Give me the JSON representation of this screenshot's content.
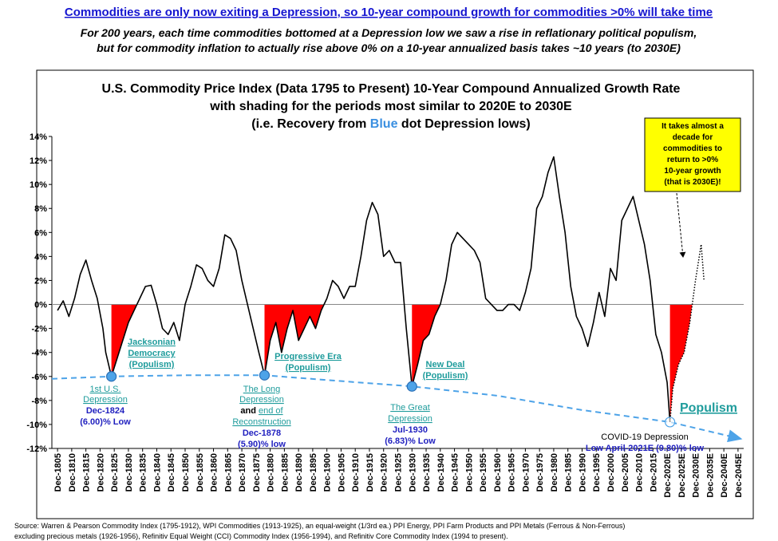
{
  "header": {
    "headline": "Commodities are only now exiting a Depression, so 10-year compound growth for commodities >0% will take time",
    "sub": [
      "For 200 years, each time commodities bottomed at a Depression low we saw a rise in reflationary political populism,",
      "but for commodity inflation to actually rise above 0% on a 10-year annualized basis takes ~10 years (to 2030E)"
    ]
  },
  "chart_data": {
    "type": "line",
    "title": [
      "U.S. Commodity Price Index (Data 1795 to Present) 10-Year Compound Annualized Growth Rate",
      "with shading for the periods most similar to 2020E to 2030E"
    ],
    "title_line3": [
      "(i.e. Recovery from",
      "Blue",
      "dot Depression lows)"
    ],
    "xlim": [
      1803,
      2047
    ],
    "xticks": [
      {
        "value": 1805,
        "label": "Dec-1805"
      },
      {
        "value": 1810,
        "label": "Dec-1810"
      },
      {
        "value": 1815,
        "label": "Dec-1815"
      },
      {
        "value": 1820,
        "label": "Dec-1820"
      },
      {
        "value": 1825,
        "label": "Dec-1825"
      },
      {
        "value": 1830,
        "label": "Dec-1830"
      },
      {
        "value": 1835,
        "label": "Dec-1835"
      },
      {
        "value": 1840,
        "label": "Dec-1840"
      },
      {
        "value": 1845,
        "label": "Dec-1845"
      },
      {
        "value": 1850,
        "label": "Dec-1850"
      },
      {
        "value": 1855,
        "label": "Dec-1855"
      },
      {
        "value": 1860,
        "label": "Dec-1860"
      },
      {
        "value": 1865,
        "label": "Dec-1865"
      },
      {
        "value": 1870,
        "label": "Dec-1870"
      },
      {
        "value": 1875,
        "label": "Dec-1875"
      },
      {
        "value": 1880,
        "label": "Dec-1880"
      },
      {
        "value": 1885,
        "label": "Dec-1885"
      },
      {
        "value": 1890,
        "label": "Dec-1890"
      },
      {
        "value": 1895,
        "label": "Dec-1895"
      },
      {
        "value": 1900,
        "label": "Dec-1900"
      },
      {
        "value": 1905,
        "label": "Dec-1905"
      },
      {
        "value": 1910,
        "label": "Dec-1910"
      },
      {
        "value": 1915,
        "label": "Dec-1915"
      },
      {
        "value": 1920,
        "label": "Dec-1920"
      },
      {
        "value": 1925,
        "label": "Dec-1925"
      },
      {
        "value": 1930,
        "label": "Dec-1930"
      },
      {
        "value": 1935,
        "label": "Dec-1935"
      },
      {
        "value": 1940,
        "label": "Dec-1940"
      },
      {
        "value": 1945,
        "label": "Dec-1945"
      },
      {
        "value": 1950,
        "label": "Dec-1950"
      },
      {
        "value": 1955,
        "label": "Dec-1955"
      },
      {
        "value": 1960,
        "label": "Dec-1960"
      },
      {
        "value": 1965,
        "label": "Dec-1965"
      },
      {
        "value": 1970,
        "label": "Dec-1970"
      },
      {
        "value": 1975,
        "label": "Dec-1975"
      },
      {
        "value": 1980,
        "label": "Dec-1980"
      },
      {
        "value": 1985,
        "label": "Dec-1985"
      },
      {
        "value": 1990,
        "label": "Dec-1990"
      },
      {
        "value": 1995,
        "label": "Dec-1995"
      },
      {
        "value": 2000,
        "label": "Dec-2000"
      },
      {
        "value": 2005,
        "label": "Dec-2005"
      },
      {
        "value": 2010,
        "label": "Dec-2010"
      },
      {
        "value": 2015,
        "label": "Dec-2015"
      },
      {
        "value": 2020,
        "label": "Dec-2020E"
      },
      {
        "value": 2025,
        "label": "Dec-2025E"
      },
      {
        "value": 2030,
        "label": "Dec-2030E"
      },
      {
        "value": 2035,
        "label": "Dec-2035E"
      },
      {
        "value": 2040,
        "label": "Dec-2040E"
      },
      {
        "value": 2045,
        "label": "Dec-2045E"
      }
    ],
    "ylim": [
      -12,
      14
    ],
    "yticks": [
      {
        "value": -12,
        "label": "-12%"
      },
      {
        "value": -10,
        "label": "-10%"
      },
      {
        "value": -8,
        "label": "-8%"
      },
      {
        "value": -6,
        "label": "-6%"
      },
      {
        "value": -4,
        "label": "-4%"
      },
      {
        "value": -2,
        "label": "-2%"
      },
      {
        "value": 0,
        "label": "0%"
      },
      {
        "value": 2,
        "label": "2%"
      },
      {
        "value": 4,
        "label": "4%"
      },
      {
        "value": 6,
        "label": "6%"
      },
      {
        "value": 8,
        "label": "8%"
      },
      {
        "value": 10,
        "label": "10%"
      },
      {
        "value": 12,
        "label": "12%"
      },
      {
        "value": 14,
        "label": "14%"
      }
    ],
    "x": [
      1805,
      1807,
      1809,
      1811,
      1813,
      1815,
      1817,
      1819,
      1821,
      1822,
      1824,
      1826,
      1828,
      1830,
      1832,
      1834,
      1836,
      1838,
      1840,
      1842,
      1844,
      1846,
      1848,
      1850,
      1852,
      1854,
      1856,
      1858,
      1860,
      1862,
      1864,
      1866,
      1868,
      1870,
      1872,
      1874,
      1876,
      1878,
      1880,
      1882,
      1884,
      1886,
      1888,
      1890,
      1892,
      1894,
      1896,
      1898,
      1900,
      1902,
      1904,
      1906,
      1908,
      1910,
      1912,
      1914,
      1916,
      1918,
      1920,
      1922,
      1924,
      1926,
      1928,
      1930,
      1932,
      1934,
      1936,
      1938,
      1940,
      1942,
      1944,
      1946,
      1948,
      1950,
      1952,
      1954,
      1956,
      1958,
      1960,
      1962,
      1964,
      1966,
      1968,
      1970,
      1972,
      1974,
      1976,
      1978,
      1980,
      1982,
      1984,
      1986,
      1988,
      1990,
      1992,
      1994,
      1996,
      1998,
      2000,
      2002,
      2004,
      2006,
      2008,
      2010,
      2012,
      2014,
      2016,
      2018,
      2020,
      2021,
      2022,
      2024,
      2026,
      2028,
      2030,
      2032,
      2033
    ],
    "series": [
      {
        "color": "#000000",
        "style": "solid",
        "values": [
          -0.5,
          0.3,
          -1,
          0.5,
          2.5,
          3.7,
          2,
          0.5,
          -2,
          -4,
          -6,
          -4.5,
          -3,
          -1.5,
          -0.5,
          0.5,
          1.5,
          1.6,
          0,
          -2,
          -2.5,
          -1.5,
          -3,
          0,
          1.5,
          3.3,
          3,
          2,
          1.5,
          3,
          5.8,
          5.5,
          4.5,
          2,
          0,
          -2,
          -4,
          -5.9,
          -3,
          -1.5,
          -4,
          -2,
          -0.5,
          -3,
          -2,
          -1,
          -2,
          -0.5,
          0.5,
          2,
          1.5,
          0.5,
          1.5,
          1.5,
          4,
          7,
          8.5,
          7.5,
          4,
          4.5,
          3.5,
          3.5,
          -2,
          -6.83,
          -5,
          -3,
          -2.5,
          -1,
          0,
          2,
          5,
          6,
          5.5,
          5,
          4.5,
          3.5,
          0.5,
          0,
          -0.5,
          -0.5,
          0,
          0,
          -0.5,
          1,
          3,
          8,
          9,
          11,
          12.3,
          9,
          6,
          1.5,
          -1,
          -2,
          -3.5,
          -1.5,
          1,
          -1,
          3,
          2,
          7,
          8,
          9,
          7,
          5,
          2,
          -2.5,
          -4,
          -6.5,
          -9.8,
          null,
          null,
          null,
          null,
          null,
          null,
          null
        ]
      },
      {
        "color": "#000000",
        "style": "dotted",
        "values": [
          null,
          null,
          null,
          null,
          null,
          null,
          null,
          null,
          null,
          null,
          null,
          null,
          null,
          null,
          null,
          null,
          null,
          null,
          null,
          null,
          null,
          null,
          null,
          null,
          null,
          null,
          null,
          null,
          null,
          null,
          null,
          null,
          null,
          null,
          null,
          null,
          null,
          null,
          null,
          null,
          null,
          null,
          null,
          null,
          null,
          null,
          null,
          null,
          null,
          null,
          null,
          null,
          null,
          null,
          null,
          null,
          null,
          null,
          null,
          null,
          null,
          null,
          null,
          null,
          null,
          null,
          null,
          null,
          null,
          null,
          null,
          null,
          null,
          null,
          null,
          null,
          null,
          null,
          null,
          null,
          null,
          null,
          null,
          null,
          null,
          null,
          null,
          null,
          null,
          null,
          null,
          null,
          null,
          null,
          null,
          null,
          null,
          null,
          null,
          null,
          null,
          null,
          null,
          null,
          null,
          null,
          null,
          null,
          null,
          -9.8,
          -7,
          -5,
          -4,
          -1.5,
          2,
          5,
          2
        ]
      }
    ],
    "shaded_ranges": [
      [
        1824,
        1836
      ],
      [
        1878,
        1900
      ],
      [
        1930,
        1940
      ],
      [
        2021,
        2030
      ]
    ],
    "shade_color": "#ff0000",
    "trend": {
      "color": "#4da3e8",
      "x": [
        1803,
        1824,
        1850,
        1878,
        1900,
        1930,
        1960,
        1990,
        2021,
        2046
      ],
      "values": [
        -6.2,
        -6,
        -5.9,
        -5.9,
        -6.3,
        -6.83,
        -7.6,
        -8.8,
        -9.8,
        -11.2
      ]
    },
    "lows": {
      "color": "#4da3e8",
      "x": [
        1824,
        1878,
        1930,
        2021
      ],
      "values": [
        -6.0,
        -5.9,
        -6.83,
        -9.8
      ],
      "hollow": [
        false,
        false,
        false,
        true
      ]
    },
    "callout": [
      "It takes almost a",
      "decade for",
      "commodities to",
      "return to >0%",
      "10-year growth",
      "(that is 2030E)!"
    ],
    "populism": {
      "jacksonian": [
        "Jacksonian",
        "Democracy",
        "(Populism)"
      ],
      "progressive": [
        "Progressive Era",
        "(Populism)"
      ],
      "new_deal": [
        "New Deal",
        "(Populism)"
      ],
      "big": "Populism"
    },
    "low_labels": {
      "first": [
        "1st U.S.",
        "Depression",
        "Dec-1824",
        "(6.00)% Low"
      ],
      "long": [
        "The Long",
        "Depression",
        "and",
        "end of",
        "Reconstruction",
        "Dec-1878",
        "(5.90)% low"
      ],
      "great": [
        "The Great",
        "Depression",
        "Jul-1930",
        "(6.83)% Low"
      ],
      "covid": [
        "COVID-19 Depression",
        "Low April-2021E (9.80)% low"
      ]
    }
  },
  "footer": [
    "Source: Warren & Pearson Commodity Index (1795-1912), WPI Commodities (1913-1925), an equal-weight (1/3rd ea.) PPI Energy, PPI Farm Products and PPI Metals (Ferrous & Non-Ferrous)",
    "excluding precious metals (1926-1956), Refinitiv Equal Weight (CCI) Commodity Index (1956-1994), and Refinitiv Core Commodity  Index (1994 to present)."
  ]
}
